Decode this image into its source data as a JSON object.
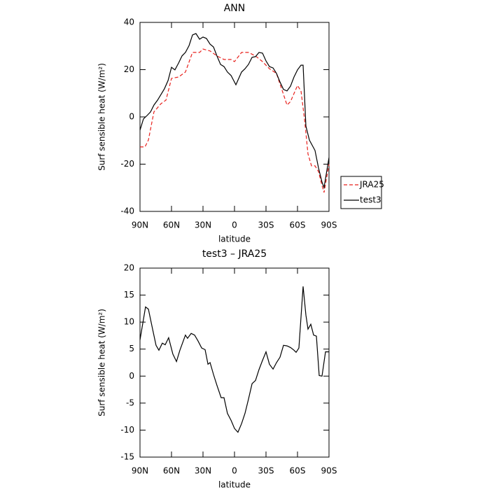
{
  "chart_data": [
    {
      "type": "line",
      "title": "ANN",
      "xlabel": "latitude",
      "ylabel": "Surf sensible heat (W/m²)",
      "xlim": [
        90,
        -90
      ],
      "xticks": [
        {
          "value": 90,
          "label": "90N"
        },
        {
          "value": 60,
          "label": "60N"
        },
        {
          "value": 30,
          "label": "30N"
        },
        0,
        {
          "value": -30,
          "label": "30S"
        },
        {
          "value": -60,
          "label": "60S"
        },
        {
          "value": -90,
          "label": "90S"
        }
      ],
      "ylim": [
        -40,
        40
      ],
      "yticks": [
        -40,
        -20,
        0,
        20,
        40
      ],
      "legend": "right",
      "series": [
        {
          "name": "JRA25",
          "color": "#e8201c",
          "dash": "dashed",
          "x": [
            90,
            85.3,
            82,
            76.7,
            70,
            65.3,
            60,
            53.3,
            46.7,
            40,
            33.3,
            30,
            23.3,
            16.7,
            10,
            3.3,
            0,
            -6.7,
            -13.3,
            -20,
            -26.7,
            -33.3,
            -40,
            -43.3,
            -46.7,
            -50,
            -53.3,
            -60,
            -63.3,
            -66.7,
            -70,
            -73.3,
            -76.7,
            -80,
            -83.3,
            -85.3,
            -90
          ],
          "values": [
            -12.7,
            -12.7,
            -9.8,
            2.1,
            5.6,
            7.1,
            16.3,
            16.9,
            19,
            27.3,
            27.3,
            28.7,
            27.9,
            25.8,
            24.3,
            24.3,
            23.4,
            27.3,
            27.3,
            25.8,
            23.4,
            20.4,
            18.4,
            13.9,
            9.5,
            5,
            6.5,
            13.3,
            11,
            -0.9,
            -15.7,
            -20.7,
            -20.7,
            -23.1,
            -29,
            -32,
            -20.1
          ]
        },
        {
          "name": "test3",
          "color": "#000000",
          "dash": "solid",
          "x": [
            90,
            86.7,
            83.3,
            80,
            76.7,
            73.3,
            70,
            66.7,
            63.3,
            60,
            56.7,
            53.3,
            50,
            46.7,
            43.3,
            40,
            36.7,
            33.3,
            30,
            26.7,
            23.3,
            20,
            16.7,
            13.3,
            10,
            6.7,
            3.3,
            -1.3,
            -6.7,
            -10,
            -13.3,
            -16.7,
            -20,
            -23.3,
            -26.7,
            -30,
            -33.3,
            -36.7,
            -40,
            -43.3,
            -46.7,
            -50,
            -53.3,
            -56.7,
            -60,
            -63.3,
            -65.3,
            -68,
            -71.3,
            -76.7,
            -80,
            -83.3,
            -85.3,
            -90
          ],
          "values": [
            -5.6,
            -0.9,
            0.6,
            2.1,
            5,
            7.1,
            9.5,
            11.9,
            15.4,
            21,
            19.9,
            22.8,
            25.8,
            27.3,
            30.2,
            34.7,
            35.3,
            32.9,
            33.8,
            33.2,
            30.8,
            29.6,
            25.8,
            22.2,
            21.3,
            19,
            17.5,
            13.6,
            19,
            20.4,
            22.2,
            25.2,
            25.5,
            27.3,
            27,
            23.7,
            21.3,
            20.7,
            18.4,
            14.8,
            11.6,
            11,
            13,
            16.9,
            19.9,
            21.9,
            21.9,
            -3.9,
            -9.8,
            -14.2,
            -21.6,
            -27.6,
            -29.9,
            -17.2
          ]
        }
      ]
    },
    {
      "type": "line",
      "title": "test3 – JRA25",
      "xlabel": "latitude",
      "ylabel": "Surf sensible heat (W/m²)",
      "xlim": [
        90,
        -90
      ],
      "xticks": [
        {
          "value": 90,
          "label": "90N"
        },
        {
          "value": 60,
          "label": "60N"
        },
        {
          "value": 30,
          "label": "30N"
        },
        0,
        {
          "value": -30,
          "label": "30S"
        },
        {
          "value": -60,
          "label": "60S"
        },
        {
          "value": -90,
          "label": "90S"
        }
      ],
      "ylim": [
        -15,
        20
      ],
      "yticks": [
        -15,
        -10,
        -5,
        0,
        5,
        10,
        15,
        20
      ],
      "color": "#000000",
      "x": [
        90,
        84.7,
        82,
        78,
        74.7,
        72,
        68.7,
        66,
        62.7,
        58.7,
        55.3,
        52,
        46.7,
        44.7,
        41.3,
        38,
        34.7,
        31.3,
        28,
        25.3,
        23.3,
        20,
        16.7,
        12.7,
        10,
        6.7,
        3.3,
        0,
        -3.3,
        -6.7,
        -10,
        -13.3,
        -16.7,
        -20,
        -23.3,
        -26.7,
        -30,
        -33.3,
        -36.7,
        -40,
        -43.3,
        -46.7,
        -50,
        -53.3,
        -56.7,
        -58.7,
        -61.3,
        -65.3,
        -68,
        -70,
        -72.7,
        -75.3,
        -78,
        -80.7,
        -83.3,
        -86.7,
        -90
      ],
      "values": [
        6.7,
        12.8,
        12.4,
        8.7,
        5.7,
        4.8,
        6.1,
        5.8,
        7.1,
        4.1,
        2.7,
        4.8,
        7.6,
        7,
        7.9,
        7.6,
        6.5,
        5.2,
        4.9,
        2.2,
        2.5,
        0.3,
        -1.7,
        -4,
        -4,
        -6.9,
        -8.2,
        -9.7,
        -10.4,
        -8.8,
        -6.9,
        -4.3,
        -1.4,
        -0.8,
        1.2,
        2.9,
        4.5,
        2.2,
        1.3,
        2.5,
        3.5,
        5.7,
        5.6,
        5.3,
        4.8,
        4.4,
        5.2,
        16.6,
        11.3,
        8.7,
        9.6,
        7.6,
        7.4,
        0.1,
        0,
        4.5,
        4.5
      ]
    }
  ]
}
